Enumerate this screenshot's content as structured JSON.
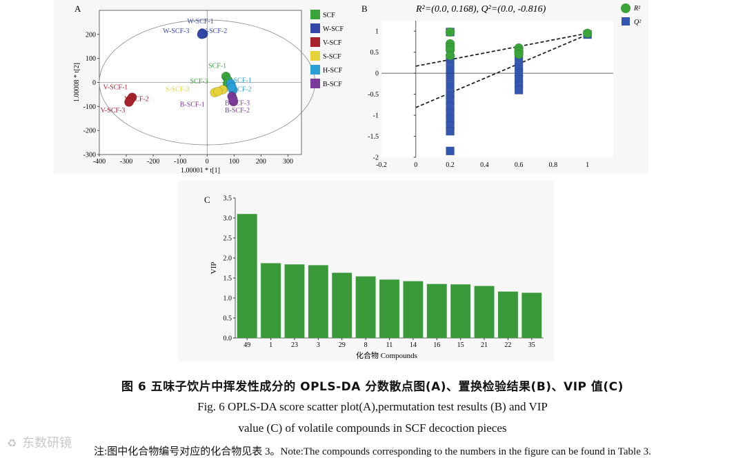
{
  "colors": {
    "SCF": "#3aa43a",
    "W-SCF": "#3348a6",
    "V-SCF": "#a8222a",
    "S-SCF": "#e6d23a",
    "H-SCF": "#2aa0d6",
    "B-SCF": "#7a3a9a",
    "R2": "#3aa43a",
    "Q2": "#3356b0",
    "bar": "#3a9a3a"
  },
  "panel_a": {
    "label": "A"
  },
  "panel_b": {
    "label": "B",
    "title": "R²=(0.0, 0.168), Q²=(0.0, -0.816)"
  },
  "panel_c": {
    "label": "C"
  },
  "chart_data": [
    {
      "type": "scatter",
      "panel": "A",
      "xlabel": "1.00001 * t[1]",
      "ylabel": "1.00008 * t[2]",
      "xlim": [
        -400,
        350
      ],
      "ylim": [
        -300,
        300
      ],
      "xticks": [
        -400,
        -300,
        -200,
        -100,
        0,
        100,
        200,
        300
      ],
      "yticks": [
        -300,
        -200,
        -100,
        0,
        100,
        200
      ],
      "legend": [
        "SCF",
        "W-SCF",
        "V-SCF",
        "S-SCF",
        "H-SCF",
        "B-SCF"
      ],
      "legend_position": "right",
      "ellipse": {
        "rx": 400,
        "ry": 260
      },
      "points": [
        {
          "group": "W-SCF",
          "label": "W-SCF-1",
          "x": -18,
          "y": 205
        },
        {
          "group": "W-SCF",
          "label": "W-SCF-2",
          "x": -14,
          "y": 202
        },
        {
          "group": "W-SCF",
          "label": "W-SCF-3",
          "x": -20,
          "y": 200
        },
        {
          "group": "V-SCF",
          "label": "V-SCF-1",
          "x": -278,
          "y": -62
        },
        {
          "group": "V-SCF",
          "label": "V-SCF-2",
          "x": -285,
          "y": -72
        },
        {
          "group": "V-SCF",
          "label": "V-SCF-3",
          "x": -290,
          "y": -82
        },
        {
          "group": "SCF",
          "label": "SCF-1",
          "x": 70,
          "y": 25
        },
        {
          "group": "SCF",
          "label": "SCF-2",
          "x": 78,
          "y": 8
        },
        {
          "group": "SCF",
          "label": "SCF-3",
          "x": 75,
          "y": -5
        },
        {
          "group": "S-SCF",
          "label": "S-SCF-1",
          "x": 28,
          "y": -42
        },
        {
          "group": "S-SCF",
          "label": "S-SCF-2",
          "x": 58,
          "y": -30
        },
        {
          "group": "S-SCF",
          "label": "S-SCF-3",
          "x": 40,
          "y": -38
        },
        {
          "group": "H-SCF",
          "label": "H-SCF-1",
          "x": 88,
          "y": -5
        },
        {
          "group": "H-SCF",
          "label": "H-SCF-2",
          "x": 96,
          "y": -32
        },
        {
          "group": "H-SCF",
          "label": "H-SCF-3",
          "x": 92,
          "y": -20
        },
        {
          "group": "B-SCF",
          "label": "B-SCF-1",
          "x": 92,
          "y": -58
        },
        {
          "group": "B-SCF",
          "label": "B-SCF-2",
          "x": 98,
          "y": -80
        },
        {
          "group": "B-SCF",
          "label": "B-SCF-3",
          "x": 96,
          "y": -70
        }
      ],
      "point_labels": [
        {
          "text": "W-SCF-1",
          "x": -25,
          "y": 245
        },
        {
          "text": "W-SCF-3",
          "x": -115,
          "y": 205
        },
        {
          "text": "W-SCF-2",
          "x": 25,
          "y": 205
        },
        {
          "text": "V-SCF-1",
          "x": -340,
          "y": -28
        },
        {
          "text": "V-SCF-2",
          "x": -262,
          "y": -78
        },
        {
          "text": "V-SCF-3",
          "x": -350,
          "y": -125
        },
        {
          "text": "SCF-1",
          "x": 38,
          "y": 60
        },
        {
          "text": "SCF-3",
          "x": -30,
          "y": -5
        },
        {
          "text": "H-SCF-1",
          "x": 118,
          "y": 0
        },
        {
          "text": "S-SCF-3",
          "x": -110,
          "y": -38
        },
        {
          "text": "H-SCF-2",
          "x": 118,
          "y": -38
        },
        {
          "text": "B-SCF-1",
          "x": -55,
          "y": -100
        },
        {
          "text": "B-SCF-3",
          "x": 112,
          "y": -95
        },
        {
          "text": "B-SCF-2",
          "x": 112,
          "y": -125
        }
      ]
    },
    {
      "type": "scatter",
      "panel": "B",
      "title": "R²=(0.0, 0.168), Q²=(0.0, -0.816)",
      "xlim": [
        -0.2,
        1.15
      ],
      "ylim": [
        -2,
        1.25
      ],
      "xticks": [
        -0.2,
        0,
        0.2,
        0.4,
        0.6,
        0.8,
        1
      ],
      "yticks": [
        -2,
        -1.5,
        -1,
        -0.5,
        0,
        0.5,
        1
      ],
      "legend": [
        "R²",
        "Q²"
      ],
      "legend_position": "top-right",
      "series": [
        {
          "name": "R²",
          "marker": "circle",
          "points": [
            [
              0.2,
              0.98
            ],
            [
              0.2,
              0.7
            ],
            [
              0.2,
              0.62
            ],
            [
              0.2,
              0.55
            ],
            [
              0.2,
              0.42
            ],
            [
              0.6,
              0.6
            ],
            [
              0.6,
              0.52
            ],
            [
              0.6,
              0.45
            ],
            [
              1,
              0.95
            ]
          ]
        },
        {
          "name": "Q²",
          "marker": "square",
          "points": [
            [
              0.2,
              0.98
            ],
            [
              0.2,
              0.3
            ],
            [
              0.2,
              0.1
            ],
            [
              0.2,
              -0.1
            ],
            [
              0.2,
              -0.3
            ],
            [
              0.2,
              -0.5
            ],
            [
              0.2,
              -0.65
            ],
            [
              0.2,
              -0.8
            ],
            [
              0.2,
              -0.95
            ],
            [
              0.2,
              -1.1
            ],
            [
              0.2,
              -1.25
            ],
            [
              0.2,
              -1.38
            ],
            [
              0.2,
              -1.85
            ],
            [
              0.6,
              0.35
            ],
            [
              0.6,
              0.15
            ],
            [
              0.6,
              0.0
            ],
            [
              0.6,
              -0.15
            ],
            [
              0.6,
              -0.28
            ],
            [
              0.6,
              -0.4
            ],
            [
              1,
              0.92
            ]
          ]
        }
      ],
      "regression_lines": [
        {
          "name": "R²",
          "x": [
            0,
            1
          ],
          "y": [
            0.168,
            0.95
          ]
        },
        {
          "name": "Q²",
          "x": [
            0,
            1
          ],
          "y": [
            -0.816,
            0.92
          ]
        }
      ]
    },
    {
      "type": "bar",
      "panel": "C",
      "ylabel": "VIP",
      "xlabel": "化合物 Compounds",
      "ylim": [
        0,
        3.5
      ],
      "yticks": [
        0.0,
        0.5,
        1.0,
        1.5,
        2.0,
        2.5,
        3.0,
        3.5
      ],
      "categories": [
        "49",
        "1",
        "23",
        "3",
        "29",
        "8",
        "11",
        "14",
        "16",
        "15",
        "21",
        "22",
        "35"
      ],
      "values": [
        3.1,
        1.87,
        1.84,
        1.82,
        1.63,
        1.54,
        1.46,
        1.42,
        1.35,
        1.34,
        1.3,
        1.16,
        1.13
      ]
    }
  ],
  "caption": {
    "cn": "图 6    五味子饮片中挥发性成分的 OPLS-DA 分数散点图(A)、置换检验结果(B)、VIP 值(C)",
    "en_line1": "Fig. 6    OPLS-DA score scatter plot(A),permutation test results (B) and VIP",
    "en_line2": "value (C) of volatile compounds in SCF decoction pieces",
    "note": "注:图中化合物编号对应的化合物见表 3。Note:The compounds corresponding to the numbers in the figure can be found in Table 3."
  },
  "watermark": {
    "icon": "♻",
    "text": "东数研镜"
  }
}
